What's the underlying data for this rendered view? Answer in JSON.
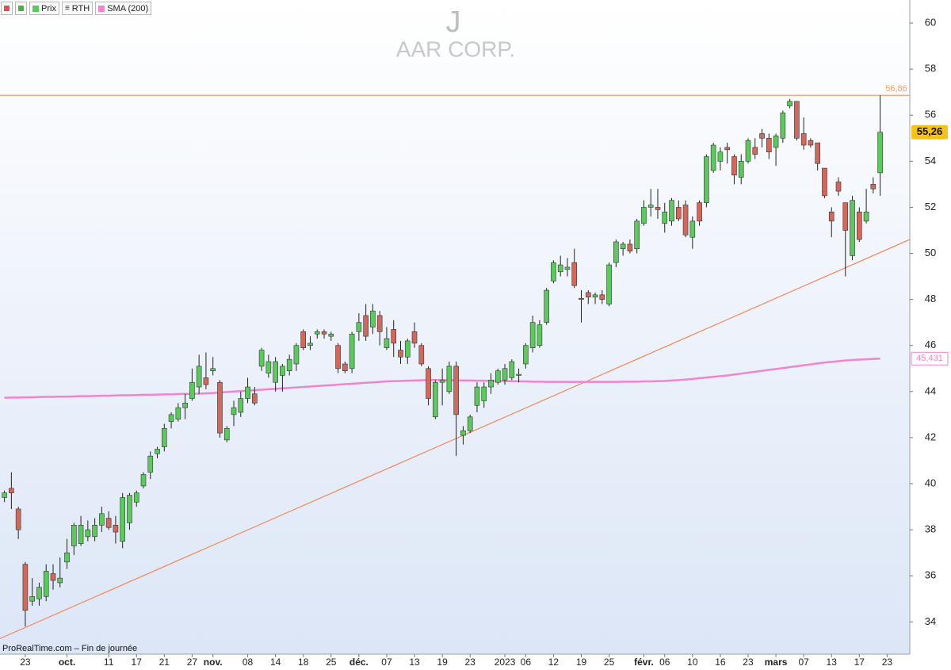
{
  "toolbar": {
    "price_name": "Prix",
    "session": "RTH"
  },
  "chart_data": {
    "type": "candlestick",
    "title": "J",
    "subtitle": "AAR CORP.",
    "footer": "ProRealTime.com – Fin de journée",
    "categories": [
      null,
      null,
      null,
      "23",
      null,
      null,
      null,
      null,
      null,
      "oct.",
      null,
      null,
      null,
      null,
      null,
      "11",
      null,
      null,
      null,
      "17",
      null,
      null,
      null,
      "21",
      null,
      null,
      null,
      "27",
      null,
      null,
      "nov.",
      null,
      null,
      null,
      null,
      "08",
      null,
      null,
      null,
      "14",
      null,
      null,
      null,
      "18",
      null,
      null,
      null,
      "25",
      null,
      null,
      null,
      "déc.",
      null,
      null,
      null,
      "07",
      null,
      null,
      null,
      "13",
      null,
      null,
      null,
      "19",
      null,
      null,
      null,
      "23",
      null,
      null,
      null,
      null,
      "2023",
      null,
      null,
      "06",
      null,
      null,
      null,
      "12",
      null,
      null,
      null,
      "19",
      null,
      null,
      null,
      "25",
      null,
      null,
      null,
      null,
      "févr.",
      null,
      null,
      "06",
      null,
      null,
      null,
      "10",
      null,
      null,
      null,
      "16",
      null,
      null,
      null,
      "23",
      null,
      null,
      null,
      "mars",
      null,
      null,
      null,
      "07",
      null,
      null,
      null,
      "13",
      null,
      null,
      null,
      "17",
      null,
      null,
      null,
      "23"
    ],
    "open": [
      39.4,
      39.8,
      38.9,
      36.5,
      34.9,
      35.0,
      35.1,
      36.1,
      35.7,
      36.6,
      37.3,
      37.4,
      37.7,
      37.7,
      38.2,
      38.5,
      38.2,
      37.5,
      38.3,
      39.2,
      39.9,
      40.5,
      41.3,
      41.6,
      42.7,
      42.8,
      43.3,
      43.7,
      44.2,
      44.6,
      44.9,
      44.4,
      41.9,
      43.0,
      43.1,
      43.7,
      43.9,
      45.1,
      44.8,
      44.4,
      44.7,
      44.9,
      45.2,
      46.6,
      46.0,
      46.5,
      46.6,
      46.4,
      46.0,
      45.2,
      45.0,
      46.6,
      47.3,
      46.8,
      47.3,
      45.9,
      46.7,
      45.8,
      45.5,
      46.6,
      46.0,
      45.0,
      42.9,
      44.4,
      44.0,
      45.1,
      42.1,
      42.3,
      43.4,
      43.6,
      44.2,
      44.4,
      44.5,
      44.6,
      44.7,
      45.2,
      45.9,
      46.0,
      47.0,
      48.8,
      49.2,
      49.3,
      49.6,
      48.05,
      48.3,
      48.1,
      48.2,
      47.8,
      49.6,
      50.2,
      50.4,
      50.2,
      51.3,
      52.0,
      52.0,
      51.3,
      51.4,
      52.0,
      52.1,
      50.7,
      52.2,
      52.2,
      53.6,
      54.0,
      54.6,
      54.2,
      53.3,
      54.0,
      54.6,
      55.2,
      55.0,
      54.6,
      55.0,
      56.4,
      56.6,
      55.2,
      54.9,
      54.8,
      53.7,
      51.8,
      53.1,
      52.2,
      49.9,
      51.8,
      51.4,
      53.0,
      53.5,
      null
    ],
    "high": [
      39.7,
      40.5,
      39.0,
      36.6,
      35.9,
      35.7,
      36.5,
      36.5,
      36.8,
      37.6,
      38.3,
      38.6,
      38.4,
      38.5,
      39.0,
      38.8,
      38.6,
      39.6,
      39.6,
      39.7,
      40.5,
      41.4,
      41.6,
      42.6,
      43.1,
      43.5,
      43.9,
      45.0,
      45.6,
      45.7,
      45.5,
      44.5,
      42.5,
      43.6,
      44.0,
      44.6,
      44.2,
      45.9,
      45.6,
      45.5,
      45.2,
      45.6,
      46.1,
      46.7,
      46.4,
      46.7,
      46.7,
      46.6,
      46.1,
      45.3,
      46.6,
      47.4,
      47.8,
      47.8,
      47.5,
      46.8,
      47.1,
      46.2,
      46.3,
      47.0,
      46.1,
      45.1,
      44.5,
      45.0,
      45.3,
      45.3,
      42.5,
      43.0,
      44.4,
      44.4,
      44.8,
      45.0,
      45.2,
      45.4,
      45.0,
      46.1,
      47.3,
      47.1,
      48.5,
      49.7,
      49.9,
      49.8,
      50.2,
      48.4,
      48.4,
      48.3,
      48.4,
      49.6,
      50.6,
      50.5,
      50.6,
      51.5,
      52.3,
      52.8,
      52.8,
      52.2,
      52.4,
      52.3,
      52.3,
      51.6,
      52.3,
      54.3,
      54.8,
      54.6,
      54.8,
      54.3,
      54.3,
      55.0,
      55.0,
      55.4,
      55.2,
      55.2,
      56.2,
      56.7,
      56.6,
      55.9,
      55.0,
      54.8,
      53.7,
      52.0,
      53.3,
      52.2,
      52.5,
      52.0,
      52.8,
      53.3,
      56.86,
      null
    ],
    "low": [
      39.2,
      38.9,
      37.6,
      33.8,
      34.7,
      34.7,
      34.9,
      35.4,
      35.5,
      36.3,
      36.9,
      37.3,
      37.5,
      37.5,
      37.9,
      38.0,
      37.4,
      37.2,
      38.0,
      39.0,
      39.8,
      40.2,
      41.1,
      41.4,
      42.4,
      42.7,
      42.8,
      43.6,
      43.9,
      44.1,
      44.7,
      42.0,
      41.8,
      42.5,
      42.9,
      43.5,
      43.4,
      44.9,
      44.6,
      44.0,
      44.0,
      44.7,
      44.9,
      45.8,
      45.8,
      46.3,
      46.3,
      46.2,
      44.8,
      44.8,
      44.8,
      46.2,
      46.2,
      46.5,
      46.0,
      45.8,
      45.5,
      45.2,
      45.2,
      45.9,
      45.1,
      43.4,
      42.8,
      43.4,
      43.9,
      41.2,
      41.7,
      42.2,
      43.1,
      43.3,
      43.9,
      44.3,
      44.3,
      44.5,
      44.4,
      45.0,
      45.7,
      45.9,
      46.9,
      48.7,
      49.0,
      49.0,
      48.5,
      47.0,
      47.8,
      47.8,
      47.8,
      47.7,
      49.4,
      49.9,
      50.0,
      50.0,
      51.2,
      51.6,
      51.5,
      50.9,
      51.2,
      51.4,
      50.7,
      50.2,
      51.2,
      52.0,
      53.5,
      53.6,
      53.9,
      53.0,
      53.0,
      53.9,
      54.1,
      54.6,
      54.1,
      53.8,
      54.8,
      56.3,
      54.9,
      54.5,
      54.6,
      53.6,
      52.4,
      50.7,
      52.5,
      49.0,
      49.7,
      50.5,
      51.3,
      52.6,
      52.5,
      null
    ],
    "close": [
      39.6,
      39.6,
      38.0,
      34.5,
      35.1,
      35.5,
      36.2,
      35.8,
      35.9,
      37.0,
      38.2,
      38.2,
      38.0,
      38.2,
      38.7,
      38.1,
      37.9,
      39.4,
      39.5,
      39.6,
      40.4,
      41.2,
      41.5,
      42.4,
      43.0,
      43.3,
      43.5,
      44.4,
      45.1,
      44.3,
      45.0,
      42.2,
      42.4,
      43.3,
      43.7,
      44.2,
      43.5,
      45.8,
      45.3,
      45.3,
      45.1,
      45.4,
      46.0,
      45.9,
      46.1,
      46.6,
      46.5,
      46.5,
      45.0,
      44.9,
      46.5,
      47.0,
      46.4,
      47.5,
      46.6,
      46.3,
      46.1,
      45.5,
      46.2,
      46.1,
      45.2,
      43.7,
      44.4,
      44.5,
      45.1,
      43.0,
      42.3,
      42.9,
      44.2,
      44.2,
      44.5,
      44.9,
      45.0,
      45.3,
      44.75,
      46.0,
      47.0,
      46.9,
      48.4,
      49.6,
      49.5,
      49.4,
      48.6,
      48.0,
      48.1,
      48.2,
      48.0,
      49.5,
      50.5,
      50.4,
      50.1,
      51.4,
      52.0,
      52.1,
      51.9,
      51.8,
      52.3,
      51.5,
      50.8,
      51.4,
      51.4,
      54.2,
      54.7,
      54.4,
      54.5,
      53.4,
      54.0,
      54.9,
      54.3,
      55.0,
      54.4,
      55.1,
      56.1,
      56.6,
      55.0,
      54.7,
      54.7,
      53.9,
      52.5,
      51.4,
      52.7,
      51.0,
      52.3,
      50.6,
      51.8,
      52.8,
      55.26,
      null
    ],
    "last_close_label": "55,26",
    "up_color": "#5cc95c",
    "down_color": "#d0685c",
    "ylim": [
      32.6,
      61.0
    ],
    "yticks": [
      34,
      36,
      38,
      40,
      42,
      44,
      46,
      48,
      50,
      52,
      54,
      56,
      58,
      60
    ],
    "series": [
      {
        "name": "SMA (200)",
        "color": "#f283cf",
        "last_label": "45,431",
        "values": [
          43.73,
          43.74,
          43.74,
          43.75,
          43.75,
          43.76,
          43.77,
          43.77,
          43.78,
          43.78,
          43.79,
          43.8,
          43.8,
          43.81,
          43.82,
          43.82,
          43.83,
          43.84,
          43.84,
          43.85,
          43.86,
          43.86,
          43.87,
          43.88,
          43.88,
          43.89,
          43.9,
          43.9,
          43.91,
          43.92,
          43.94,
          43.96,
          43.98,
          44.0,
          44.02,
          44.04,
          44.06,
          44.08,
          44.1,
          44.12,
          44.14,
          44.16,
          44.18,
          44.2,
          44.22,
          44.24,
          44.26,
          44.28,
          44.3,
          44.32,
          44.34,
          44.36,
          44.38,
          44.4,
          44.42,
          44.44,
          44.45,
          44.46,
          44.47,
          44.48,
          44.49,
          44.5,
          44.5,
          44.5,
          44.49,
          44.49,
          44.48,
          44.48,
          44.47,
          44.47,
          44.46,
          44.46,
          44.45,
          44.45,
          44.44,
          44.44,
          44.43,
          44.43,
          44.42,
          44.42,
          44.42,
          44.42,
          44.42,
          44.42,
          44.42,
          44.42,
          44.42,
          44.42,
          44.42,
          44.43,
          44.43,
          44.43,
          44.44,
          44.44,
          44.45,
          44.46,
          44.48,
          44.5,
          44.52,
          44.55,
          44.58,
          44.61,
          44.64,
          44.67,
          44.7,
          44.74,
          44.78,
          44.82,
          44.86,
          44.9,
          44.94,
          44.98,
          45.02,
          45.06,
          45.1,
          45.14,
          45.18,
          45.22,
          45.26,
          45.29,
          45.32,
          45.35,
          45.37,
          45.39,
          45.4,
          45.42,
          45.431,
          null
        ]
      }
    ],
    "hline": {
      "value": 56.86,
      "label": "56,86",
      "color": "#f3a06a"
    },
    "trendline": {
      "start": 33.36,
      "end": 50.17,
      "color": "#f3875a"
    }
  }
}
